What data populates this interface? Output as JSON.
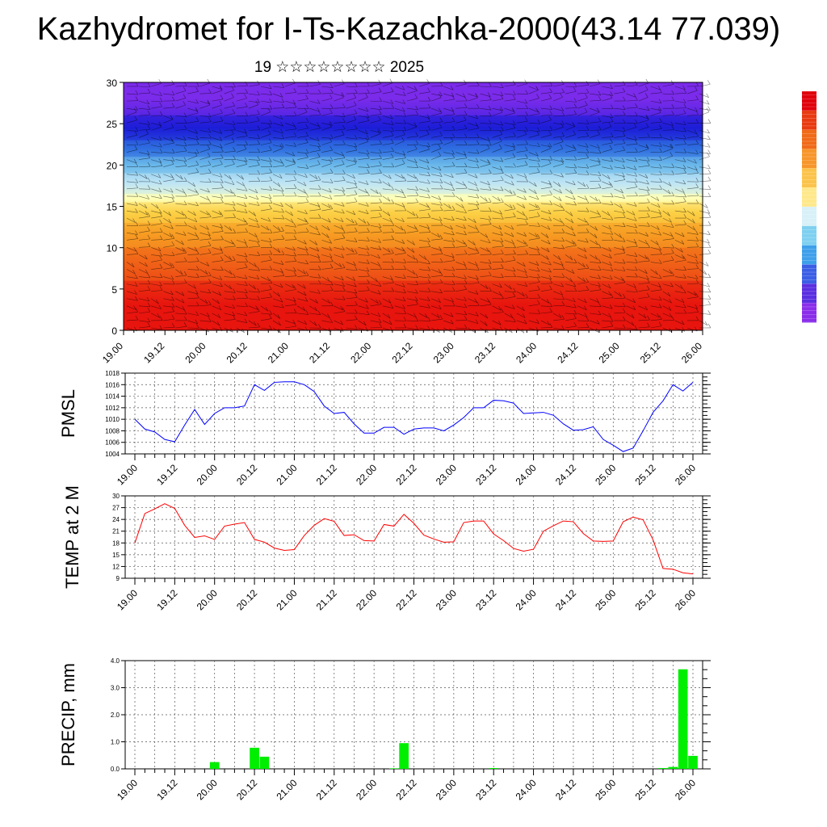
{
  "title": "Kazhydromet for I-Ts-Kazachka-2000(43.14 77.039)",
  "subtitle": "19 ☆☆☆☆☆☆☆☆ 2025",
  "time_labels": [
    "19.00",
    "19.12",
    "20.00",
    "20.12",
    "21.00",
    "21.12",
    "22.00",
    "22.12",
    "23.00",
    "23.12",
    "24.00",
    "24.12",
    "25.00",
    "25.12",
    "26.00"
  ],
  "chart_data": [
    {
      "type": "heatmap",
      "name": "",
      "xlabel": "",
      "ylabel": "",
      "ylim": [
        0,
        30
      ],
      "yticks": [
        0,
        5,
        10,
        15,
        20,
        25,
        30
      ],
      "bands": [
        {
          "y": [
            0,
            6
          ],
          "color": "#e8150f"
        },
        {
          "y": [
            6,
            10
          ],
          "color": "#f06018"
        },
        {
          "y": [
            10,
            13
          ],
          "color": "#f79a22"
        },
        {
          "y": [
            13,
            15.5
          ],
          "color": "#fbd046"
        },
        {
          "y": [
            15.5,
            16.5
          ],
          "color": "#ffffb8"
        },
        {
          "y": [
            16.5,
            19
          ],
          "color": "#bfe6f5"
        },
        {
          "y": [
            19,
            21
          ],
          "color": "#6ab8ea"
        },
        {
          "y": [
            21,
            23
          ],
          "color": "#2f6ee0"
        },
        {
          "y": [
            23,
            26
          ],
          "color": "#1d1ed8"
        },
        {
          "y": [
            26,
            30
          ],
          "color": "#7b2bea"
        }
      ],
      "colorbar": [
        "#e0000a",
        "#e83a10",
        "#f06a18",
        "#f7962a",
        "#fbc34a",
        "#ffe88a",
        "#d8f0f8",
        "#7fd0f0",
        "#3fa0ea",
        "#3b5ee5",
        "#5a2ee0",
        "#8b2eea"
      ]
    },
    {
      "type": "line",
      "ylabel": "PMSL",
      "ylim": [
        1004,
        1018
      ],
      "yticks": [
        1004,
        1006,
        1008,
        1010,
        1012,
        1014,
        1016,
        1018
      ],
      "color": "#0000ff",
      "x": [
        0,
        1,
        2,
        3,
        4,
        5,
        6,
        7,
        8,
        9,
        10,
        11,
        12,
        13,
        14,
        15,
        16,
        17,
        18,
        19,
        20,
        21,
        22,
        23,
        24,
        25,
        26,
        27,
        28,
        29,
        30,
        31,
        32,
        33,
        34,
        35,
        36,
        37,
        38,
        39,
        40,
        41,
        42,
        43,
        44,
        45,
        46,
        47,
        48,
        49,
        50,
        51,
        52,
        53,
        54,
        55,
        56
      ],
      "values": [
        1010,
        1008.3,
        1007.8,
        1006.5,
        1006.1,
        1009,
        1011.7,
        1009.1,
        1011,
        1012,
        1012,
        1012.3,
        1016,
        1015,
        1016.4,
        1016.5,
        1016.5,
        1016,
        1014.8,
        1012.3,
        1011,
        1011.2,
        1009.2,
        1007.6,
        1007.6,
        1008.6,
        1008.6,
        1007.4,
        1008.3,
        1008.5,
        1008.5,
        1008,
        1009,
        1010.3,
        1012,
        1012,
        1013.3,
        1013.2,
        1012.8,
        1011,
        1011.1,
        1011.2,
        1010.7,
        1009.2,
        1008.1,
        1008.2,
        1008.7,
        1006.5,
        1005.5,
        1004.4,
        1005,
        1008,
        1011.2,
        1013.2,
        1016,
        1014.9,
        1016.4
      ]
    },
    {
      "type": "line",
      "ylabel": "TEMP at 2 M",
      "ylim": [
        9,
        30
      ],
      "yticks": [
        9,
        12,
        15,
        18,
        21,
        24,
        27,
        30
      ],
      "color": "#ff0000",
      "x": [
        0,
        1,
        2,
        3,
        4,
        5,
        6,
        7,
        8,
        9,
        10,
        11,
        12,
        13,
        14,
        15,
        16,
        17,
        18,
        19,
        20,
        21,
        22,
        23,
        24,
        25,
        26,
        27,
        28,
        29,
        30,
        31,
        32,
        33,
        34,
        35,
        36,
        37,
        38,
        39,
        40,
        41,
        42,
        43,
        44,
        45,
        46,
        47,
        48,
        49,
        50,
        51,
        52,
        53,
        54,
        55,
        56
      ],
      "values": [
        18,
        25.5,
        26.7,
        28,
        26.8,
        22.5,
        19.4,
        19.8,
        18.9,
        22.3,
        22.8,
        23.2,
        18.9,
        18.2,
        16.7,
        16.1,
        16.3,
        19.9,
        22.5,
        24.2,
        23.5,
        19.9,
        20.1,
        18.6,
        18.5,
        22.7,
        22.3,
        25.3,
        23,
        20,
        19,
        18.2,
        18.3,
        23.2,
        23.6,
        23.6,
        20.3,
        18.6,
        16.6,
        15.9,
        16.4,
        21,
        22.4,
        23.6,
        23.4,
        20.4,
        18.5,
        18.4,
        18.5,
        23.4,
        24.6,
        23.9,
        18.8,
        11.5,
        11.3,
        10.4,
        10.1
      ]
    },
    {
      "type": "bar",
      "ylabel": "PRECIP, mm",
      "ylim": [
        0,
        4
      ],
      "yticks": [
        "0.0",
        "1.0",
        "2.0",
        "3.0",
        "4.0"
      ],
      "color": "#00ee00",
      "x": [
        8,
        12,
        13,
        26,
        27,
        36,
        53,
        54,
        55,
        56
      ],
      "values": [
        0.25,
        0.78,
        0.45,
        0.02,
        0.95,
        0.03,
        0.03,
        0.07,
        3.68,
        0.48
      ]
    }
  ]
}
